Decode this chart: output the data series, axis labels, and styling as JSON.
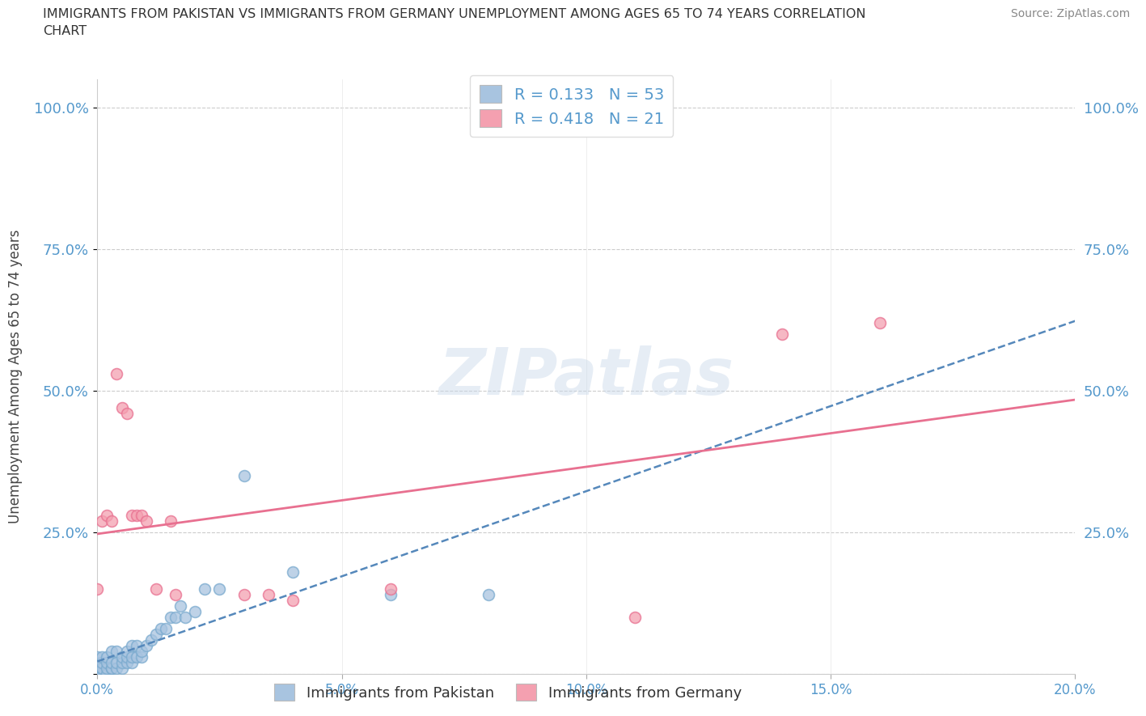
{
  "title_line1": "IMMIGRANTS FROM PAKISTAN VS IMMIGRANTS FROM GERMANY UNEMPLOYMENT AMONG AGES 65 TO 74 YEARS CORRELATION",
  "title_line2": "CHART",
  "source": "Source: ZipAtlas.com",
  "ylabel": "Unemployment Among Ages 65 to 74 years",
  "xlim": [
    0.0,
    0.2
  ],
  "ylim": [
    0.0,
    1.05
  ],
  "yticks": [
    0.0,
    0.25,
    0.5,
    0.75,
    1.0
  ],
  "ytick_labels": [
    "",
    "25.0%",
    "50.0%",
    "75.0%",
    "100.0%"
  ],
  "xtick_positions": [
    0.0,
    0.05,
    0.1,
    0.15,
    0.2
  ],
  "xtick_labels": [
    "0.0%",
    "5.0%",
    "10.0%",
    "15.0%",
    "20.0%"
  ],
  "r_pakistan": 0.133,
  "n_pakistan": 53,
  "r_germany": 0.418,
  "n_germany": 21,
  "pakistan_color": "#a8c4e0",
  "pakistan_edge_color": "#7aaace",
  "germany_color": "#f4a0b0",
  "germany_edge_color": "#e87090",
  "pakistan_line_color": "#5588bb",
  "germany_line_color": "#e87090",
  "watermark": "ZIPatlas",
  "tick_color": "#5599cc",
  "legend_label_color": "#5599cc",
  "pakistan_x": [
    0.0,
    0.0,
    0.0,
    0.0,
    0.0,
    0.0,
    0.0,
    0.001,
    0.001,
    0.001,
    0.001,
    0.001,
    0.001,
    0.002,
    0.002,
    0.002,
    0.002,
    0.003,
    0.003,
    0.003,
    0.003,
    0.004,
    0.004,
    0.004,
    0.005,
    0.005,
    0.005,
    0.006,
    0.006,
    0.006,
    0.007,
    0.007,
    0.007,
    0.008,
    0.008,
    0.009,
    0.009,
    0.01,
    0.011,
    0.012,
    0.013,
    0.014,
    0.015,
    0.016,
    0.017,
    0.018,
    0.02,
    0.022,
    0.025,
    0.03,
    0.04,
    0.06,
    0.08
  ],
  "pakistan_y": [
    0.0,
    0.0,
    0.0,
    0.01,
    0.01,
    0.02,
    0.03,
    0.0,
    0.0,
    0.01,
    0.01,
    0.02,
    0.03,
    0.0,
    0.01,
    0.02,
    0.03,
    0.01,
    0.01,
    0.02,
    0.04,
    0.01,
    0.02,
    0.04,
    0.01,
    0.02,
    0.03,
    0.02,
    0.03,
    0.04,
    0.02,
    0.03,
    0.05,
    0.03,
    0.05,
    0.03,
    0.04,
    0.05,
    0.06,
    0.07,
    0.08,
    0.08,
    0.1,
    0.1,
    0.12,
    0.1,
    0.11,
    0.15,
    0.15,
    0.35,
    0.18,
    0.14,
    0.14
  ],
  "germany_x": [
    0.0,
    0.001,
    0.002,
    0.003,
    0.004,
    0.005,
    0.006,
    0.007,
    0.008,
    0.009,
    0.01,
    0.012,
    0.015,
    0.016,
    0.03,
    0.035,
    0.04,
    0.06,
    0.11,
    0.14,
    0.16
  ],
  "germany_y": [
    0.15,
    0.27,
    0.28,
    0.27,
    0.53,
    0.47,
    0.46,
    0.28,
    0.28,
    0.28,
    0.27,
    0.15,
    0.27,
    0.14,
    0.14,
    0.14,
    0.13,
    0.15,
    0.1,
    0.6,
    0.62
  ]
}
